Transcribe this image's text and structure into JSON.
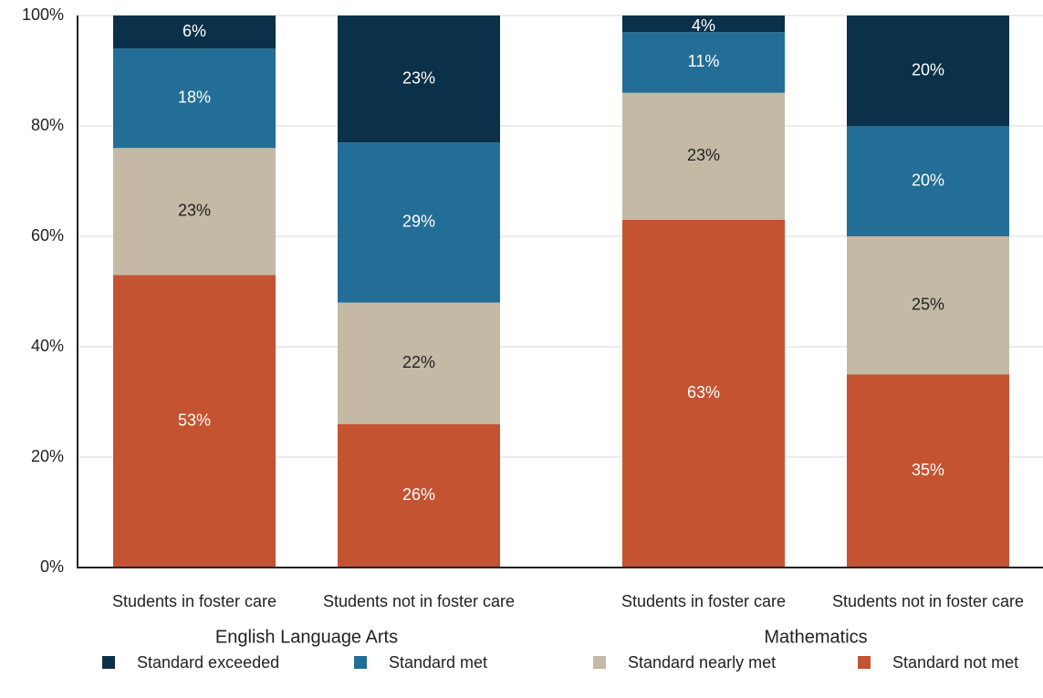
{
  "chart_data": {
    "type": "stacked_bar",
    "categories": [
      "Students in foster care",
      "Students not in foster care",
      "Students in foster care",
      "Students not in foster care"
    ],
    "groups": [
      "English Language Arts",
      "Mathematics"
    ],
    "series": [
      {
        "name": "Standard exceeded",
        "color": "#0b3049",
        "label_color": "#ffffff",
        "values": [
          6,
          23,
          4,
          20
        ],
        "value_labels": [
          "6%",
          "23%",
          "4%",
          "20%"
        ]
      },
      {
        "name": "Standard met",
        "color": "#236e96",
        "label_color": "#ffffff",
        "values": [
          18,
          29,
          11,
          20
        ],
        "value_labels": [
          "18%",
          "29%",
          "11%",
          "20%"
        ]
      },
      {
        "name": "Standard nearly met",
        "color": "#c3b9a5",
        "label_color": "#222222",
        "values": [
          23,
          22,
          23,
          25
        ],
        "value_labels": [
          "23%",
          "22%",
          "23%",
          "25%"
        ]
      },
      {
        "name": "Standard not met",
        "color": "#c45332",
        "label_color": "#ffffff",
        "values": [
          53,
          26,
          63,
          35
        ],
        "value_labels": [
          "53%",
          "26%",
          "63%",
          "35%"
        ]
      }
    ],
    "ylim": [
      0,
      100
    ],
    "yticks": [
      {
        "value": 0,
        "label": "0%"
      },
      {
        "value": 20,
        "label": "20%"
      },
      {
        "value": 40,
        "label": "40%"
      },
      {
        "value": 60,
        "label": "60%"
      },
      {
        "value": 80,
        "label": "80%"
      },
      {
        "value": 100,
        "label": "100%"
      }
    ],
    "grid": true,
    "legend": "bottom"
  }
}
